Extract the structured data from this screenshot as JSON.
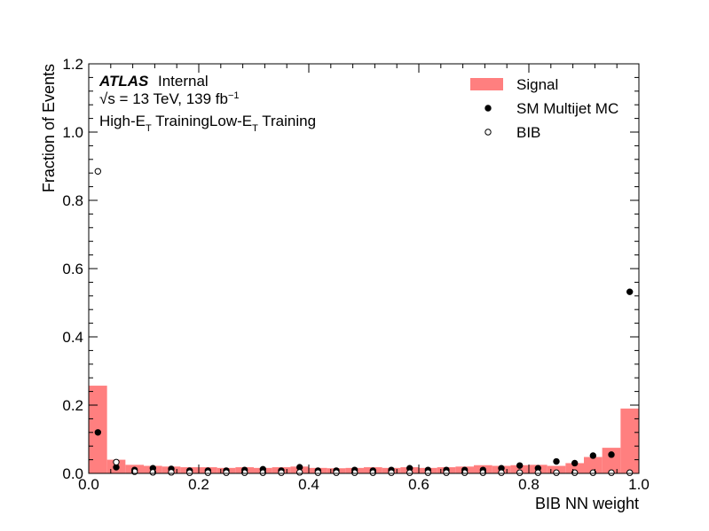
{
  "chart_data": {
    "type": "histogram",
    "xlabel": "BIB NN weight",
    "ylabel": "Fraction of Events",
    "annotations": {
      "experiment": "ATLAS",
      "status": "Internal",
      "energy": [
        "√s = 13 TeV, 139 fb",
        "−1"
      ],
      "training": [
        "High-E",
        "T",
        " TrainingLow-E",
        "T",
        " Training"
      ]
    },
    "bins": [
      0,
      0.0333,
      0.0667,
      0.1,
      0.1333,
      0.1667,
      0.2,
      0.2333,
      0.2667,
      0.3,
      0.3333,
      0.3667,
      0.4,
      0.4333,
      0.4667,
      0.5,
      0.5333,
      0.5667,
      0.6,
      0.6333,
      0.6667,
      0.7,
      0.7333,
      0.7667,
      0.8,
      0.8333,
      0.8667,
      0.9,
      0.9333,
      0.9667,
      1
    ],
    "series": [
      {
        "name": "Signal",
        "style": "bar",
        "color": "#ff7f7f",
        "values": [
          0.257,
          0.04,
          0.025,
          0.022,
          0.02,
          0.018,
          0.018,
          0.016,
          0.018,
          0.016,
          0.018,
          0.02,
          0.016,
          0.015,
          0.016,
          0.018,
          0.016,
          0.018,
          0.016,
          0.018,
          0.02,
          0.024,
          0.022,
          0.024,
          0.025,
          0.022,
          0.03,
          0.048,
          0.075,
          0.19
        ]
      },
      {
        "name": "SM Multijet MC",
        "style": "filled",
        "color": "#000000",
        "values": [
          0.12,
          0.018,
          0.01,
          0.015,
          0.013,
          0.008,
          0.008,
          0.008,
          0.01,
          0.012,
          0.008,
          0.018,
          0.008,
          0.008,
          0.01,
          0.008,
          0.01,
          0.015,
          0.01,
          0.01,
          0.01,
          0.01,
          0.015,
          0.023,
          0.015,
          0.035,
          0.03,
          0.052,
          0.055,
          0.532
        ]
      },
      {
        "name": "BIB",
        "style": "open",
        "color": "#000000",
        "values": [
          0.885,
          0.033,
          0.005,
          0.003,
          0.003,
          0.002,
          0.002,
          0.002,
          0.002,
          0.002,
          0.002,
          0.003,
          0.002,
          0.002,
          0.002,
          0.002,
          0.002,
          0.002,
          0.002,
          0.002,
          0.002,
          0.002,
          0.002,
          0.002,
          0.002,
          0.002,
          0.002,
          0.002,
          0.002,
          0.002
        ]
      }
    ],
    "xlim": [
      0,
      1
    ],
    "xticks": [
      {
        "value": 0,
        "label": "0.0"
      },
      0.2,
      0.4,
      0.6,
      0.8,
      {
        "value": 1,
        "label": "1.0"
      }
    ],
    "ylim": [
      0,
      1.2
    ],
    "yticks": [
      {
        "value": 0,
        "label": "0.0"
      },
      0.2,
      0.4,
      0.6,
      0.8,
      {
        "value": 1,
        "label": "1.0"
      },
      1.2
    ],
    "legend": "upper right",
    "grid": false
  }
}
